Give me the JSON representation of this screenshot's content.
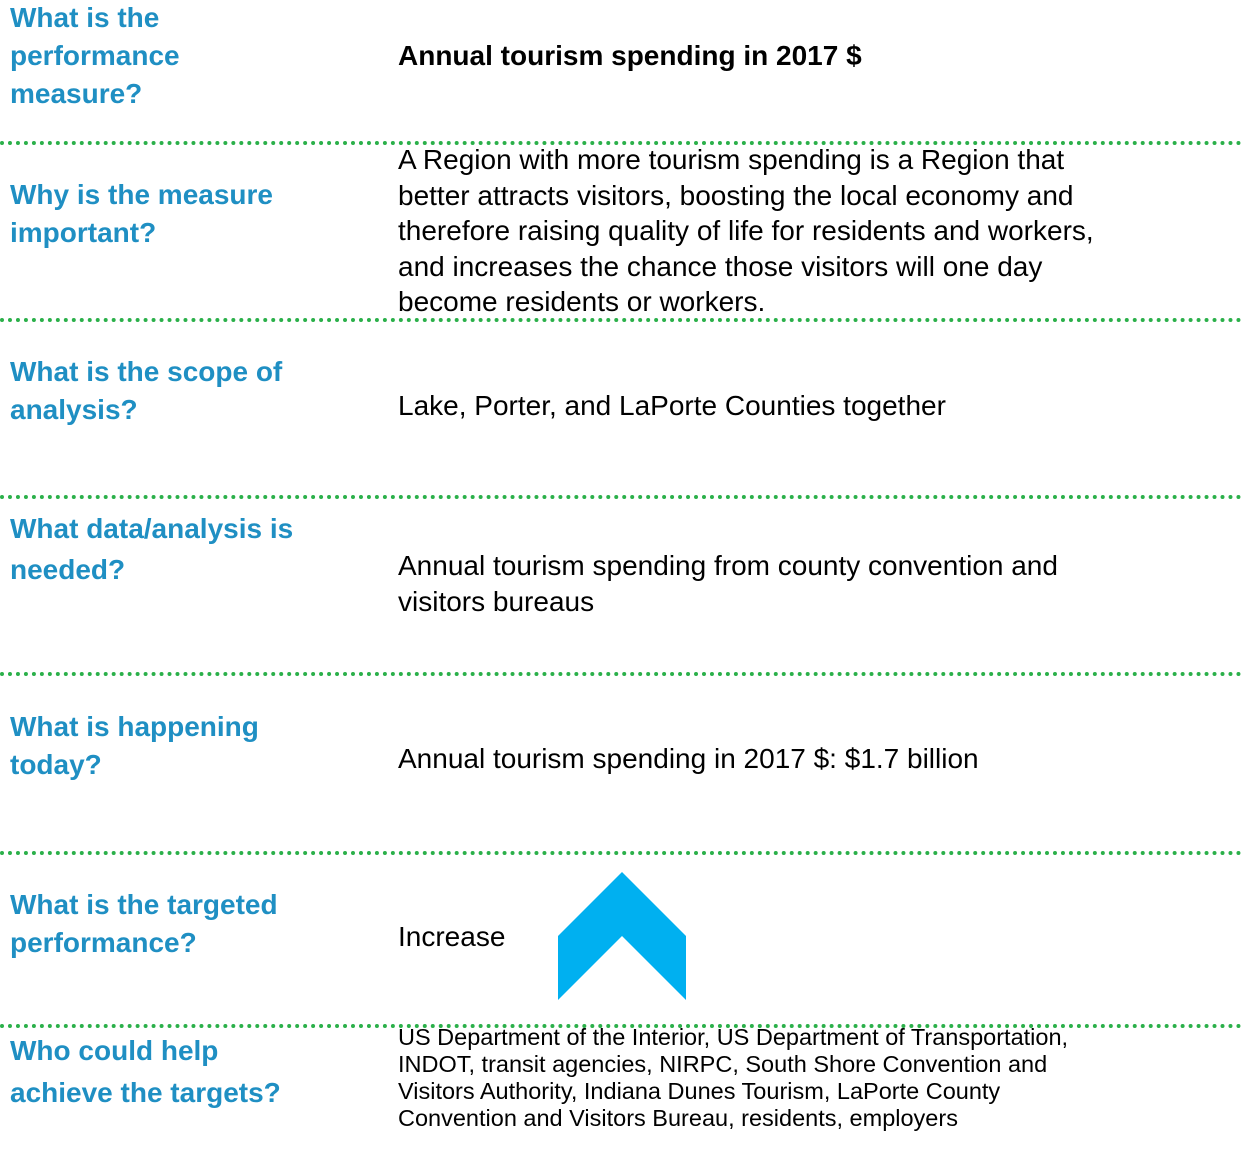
{
  "rows": [
    {
      "label": [
        "What is the",
        "performance",
        "measure?"
      ],
      "value": [
        "Annual tourism spending in 2017 $"
      ]
    },
    {
      "label": [
        "Why is the measure",
        "important?"
      ],
      "value": [
        "A Region with more tourism spending is a Region that",
        "better attracts visitors, boosting the local economy and",
        "therefore raising quality of life for residents and workers,",
        "and increases the chance those visitors will one day",
        "become residents or workers."
      ]
    },
    {
      "label": [
        "What is the scope of",
        "analysis?"
      ],
      "value": [
        "Lake, Porter, and LaPorte Counties together"
      ]
    },
    {
      "label": [
        "What data/analysis is",
        "needed?"
      ],
      "value": [
        "Annual tourism spending from county convention and",
        "visitors bureaus"
      ]
    },
    {
      "label": [
        "What is happening",
        "today?"
      ],
      "value": [
        "Annual tourism spending in 2017 $: $1.7 billion"
      ]
    },
    {
      "label": [
        "What is the targeted",
        "performance?"
      ],
      "value": [
        "Increase"
      ]
    },
    {
      "label": [
        "Who could help",
        "achieve the targets?"
      ],
      "value": [
        "US Department of the Interior, US Department of Transportation,",
        "INDOT, transit agencies, NIRPC, South Shore Convention and",
        "Visitors Authority, Indiana Dunes Tourism, LaPorte County",
        "Convention and Visitors Bureau, residents, employers"
      ]
    }
  ]
}
